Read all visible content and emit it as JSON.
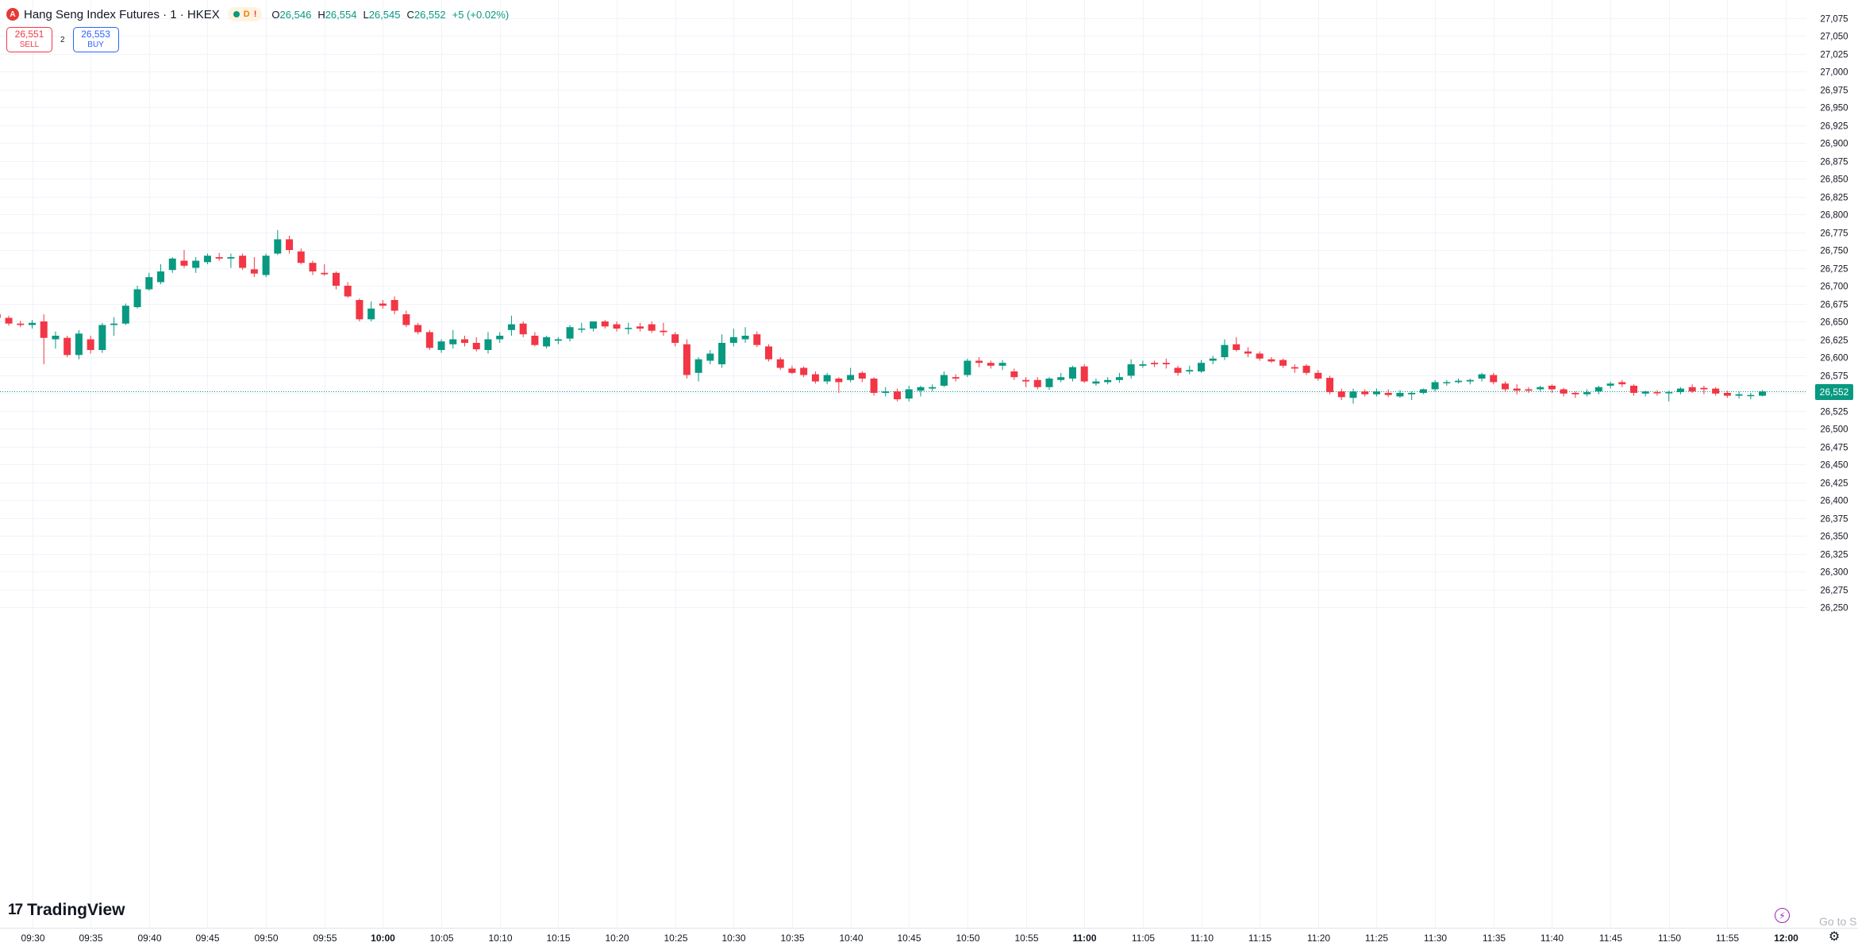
{
  "header": {
    "logo_letter": "A",
    "title": "Hang Seng Index Futures · 1 · HKEX",
    "status_letter": "D",
    "status_warning": "!",
    "open_label": "O",
    "open": "26,546",
    "high_label": "H",
    "high": "26,554",
    "low_label": "L",
    "low": "26,545",
    "close_label": "C",
    "close": "26,552",
    "change": "+5 (+0.02%)"
  },
  "trade": {
    "sell_price": "26,551",
    "sell_label": "SELL",
    "spread": "2",
    "buy_price": "26,553",
    "buy_label": "BUY"
  },
  "price_scale": {
    "current_price_label": "26,552"
  },
  "footer": {
    "brand": "TradingView",
    "goto_text": "Go to S"
  },
  "colors": {
    "up": "#089981",
    "down": "#f23645",
    "grid": "#f0f3fa",
    "text": "#131722"
  },
  "chart_data": {
    "type": "candlestick",
    "title": "Hang Seng Index Futures · 1 · HKEX",
    "interval": "1 minute",
    "y_ticks": [
      27075,
      27050,
      27025,
      27000,
      26975,
      26950,
      26925,
      26900,
      26875,
      26850,
      26825,
      26800,
      26775,
      26750,
      26725,
      26700,
      26675,
      26650,
      26625,
      26600,
      26575,
      26550,
      26525,
      26500,
      26475,
      26450,
      26425,
      26400,
      26375,
      26350,
      26325,
      26300,
      26275,
      26250
    ],
    "x_tick_labels": [
      "09:30",
      "09:35",
      "09:40",
      "09:45",
      "09:50",
      "09:55",
      "10:00",
      "10:05",
      "10:10",
      "10:15",
      "10:20",
      "10:25",
      "10:30",
      "10:35",
      "10:40",
      "10:45",
      "10:50",
      "10:55",
      "11:00",
      "11:05",
      "11:10",
      "11:15",
      "11:20",
      "11:25",
      "11:30",
      "11:35",
      "11:40",
      "11:45",
      "11:50",
      "11:55",
      "12:00"
    ],
    "bold_x_labels": [
      "10:00",
      "11:00",
      "12:00"
    ],
    "last_price": 26552,
    "grid": true,
    "candles": [
      {
        "t": "09:27",
        "o": 26660,
        "h": 26662,
        "l": 26650,
        "c": 26655
      },
      {
        "t": "09:28",
        "o": 26655,
        "h": 26658,
        "l": 26644,
        "c": 26647
      },
      {
        "t": "09:29",
        "o": 26647,
        "h": 26651,
        "l": 26642,
        "c": 26645
      },
      {
        "t": "09:30",
        "o": 26645,
        "h": 26652,
        "l": 26640,
        "c": 26648
      },
      {
        "t": "09:31",
        "o": 26650,
        "h": 26660,
        "l": 26590,
        "c": 26627
      },
      {
        "t": "09:32",
        "o": 26625,
        "h": 26636,
        "l": 26612,
        "c": 26630
      },
      {
        "t": "09:33",
        "o": 26627,
        "h": 26630,
        "l": 26600,
        "c": 26603
      },
      {
        "t": "09:34",
        "o": 26603,
        "h": 26638,
        "l": 26597,
        "c": 26633
      },
      {
        "t": "09:35",
        "o": 26625,
        "h": 26630,
        "l": 26605,
        "c": 26610
      },
      {
        "t": "09:36",
        "o": 26610,
        "h": 26648,
        "l": 26606,
        "c": 26645
      },
      {
        "t": "09:37",
        "o": 26645,
        "h": 26656,
        "l": 26630,
        "c": 26647
      },
      {
        "t": "09:38",
        "o": 26647,
        "h": 26675,
        "l": 26645,
        "c": 26672
      },
      {
        "t": "09:39",
        "o": 26670,
        "h": 26700,
        "l": 26668,
        "c": 26695
      },
      {
        "t": "09:40",
        "o": 26695,
        "h": 26718,
        "l": 26693,
        "c": 26712
      },
      {
        "t": "09:41",
        "o": 26705,
        "h": 26730,
        "l": 26702,
        "c": 26720
      },
      {
        "t": "09:42",
        "o": 26722,
        "h": 26740,
        "l": 26718,
        "c": 26738
      },
      {
        "t": "09:43",
        "o": 26735,
        "h": 26750,
        "l": 26725,
        "c": 26728
      },
      {
        "t": "09:44",
        "o": 26725,
        "h": 26740,
        "l": 26718,
        "c": 26735
      },
      {
        "t": "09:45",
        "o": 26733,
        "h": 26745,
        "l": 26730,
        "c": 26742
      },
      {
        "t": "09:46",
        "o": 26740,
        "h": 26746,
        "l": 26735,
        "c": 26738
      },
      {
        "t": "09:47",
        "o": 26738,
        "h": 26745,
        "l": 26725,
        "c": 26740
      },
      {
        "t": "09:48",
        "o": 26742,
        "h": 26745,
        "l": 26722,
        "c": 26725
      },
      {
        "t": "09:49",
        "o": 26723,
        "h": 26740,
        "l": 26712,
        "c": 26717
      },
      {
        "t": "09:50",
        "o": 26715,
        "h": 26745,
        "l": 26712,
        "c": 26742
      },
      {
        "t": "09:51",
        "o": 26745,
        "h": 26778,
        "l": 26743,
        "c": 26765
      },
      {
        "t": "09:52",
        "o": 26765,
        "h": 26770,
        "l": 26745,
        "c": 26750
      },
      {
        "t": "09:53",
        "o": 26748,
        "h": 26752,
        "l": 26730,
        "c": 26732
      },
      {
        "t": "09:54",
        "o": 26732,
        "h": 26735,
        "l": 26715,
        "c": 26720
      },
      {
        "t": "09:55",
        "o": 26718,
        "h": 26730,
        "l": 26714,
        "c": 26716
      },
      {
        "t": "09:56",
        "o": 26718,
        "h": 26720,
        "l": 26695,
        "c": 26700
      },
      {
        "t": "09:57",
        "o": 26700,
        "h": 26705,
        "l": 26683,
        "c": 26685
      },
      {
        "t": "09:58",
        "o": 26680,
        "h": 26682,
        "l": 26650,
        "c": 26653
      },
      {
        "t": "09:59",
        "o": 26653,
        "h": 26678,
        "l": 26650,
        "c": 26668
      },
      {
        "t": "10:00",
        "o": 26675,
        "h": 26680,
        "l": 26668,
        "c": 26672
      },
      {
        "t": "10:01",
        "o": 26680,
        "h": 26685,
        "l": 26660,
        "c": 26665
      },
      {
        "t": "10:02",
        "o": 26660,
        "h": 26665,
        "l": 26642,
        "c": 26645
      },
      {
        "t": "10:03",
        "o": 26645,
        "h": 26648,
        "l": 26632,
        "c": 26635
      },
      {
        "t": "10:04",
        "o": 26635,
        "h": 26638,
        "l": 26610,
        "c": 26613
      },
      {
        "t": "10:05",
        "o": 26610,
        "h": 26625,
        "l": 26606,
        "c": 26622
      },
      {
        "t": "10:06",
        "o": 26618,
        "h": 26638,
        "l": 26612,
        "c": 26625
      },
      {
        "t": "10:07",
        "o": 26625,
        "h": 26630,
        "l": 26615,
        "c": 26620
      },
      {
        "t": "10:08",
        "o": 26620,
        "h": 26628,
        "l": 26608,
        "c": 26611
      },
      {
        "t": "10:09",
        "o": 26610,
        "h": 26635,
        "l": 26605,
        "c": 26625
      },
      {
        "t": "10:10",
        "o": 26625,
        "h": 26635,
        "l": 26620,
        "c": 26630
      },
      {
        "t": "10:11",
        "o": 26638,
        "h": 26658,
        "l": 26630,
        "c": 26646
      },
      {
        "t": "10:12",
        "o": 26647,
        "h": 26650,
        "l": 26628,
        "c": 26632
      },
      {
        "t": "10:13",
        "o": 26630,
        "h": 26635,
        "l": 26615,
        "c": 26617
      },
      {
        "t": "10:14",
        "o": 26615,
        "h": 26630,
        "l": 26612,
        "c": 26628
      },
      {
        "t": "10:15",
        "o": 26623,
        "h": 26628,
        "l": 26618,
        "c": 26625
      },
      {
        "t": "10:16",
        "o": 26626,
        "h": 26645,
        "l": 26622,
        "c": 26642
      },
      {
        "t": "10:17",
        "o": 26640,
        "h": 26648,
        "l": 26634,
        "c": 26640
      },
      {
        "t": "10:18",
        "o": 26640,
        "h": 26650,
        "l": 26636,
        "c": 26650
      },
      {
        "t": "10:19",
        "o": 26650,
        "h": 26652,
        "l": 26640,
        "c": 26643
      },
      {
        "t": "10:20",
        "o": 26646,
        "h": 26650,
        "l": 26636,
        "c": 26640
      },
      {
        "t": "10:21",
        "o": 26640,
        "h": 26648,
        "l": 26632,
        "c": 26641
      },
      {
        "t": "10:22",
        "o": 26643,
        "h": 26648,
        "l": 26636,
        "c": 26640
      },
      {
        "t": "10:23",
        "o": 26646,
        "h": 26650,
        "l": 26634,
        "c": 26637
      },
      {
        "t": "10:24",
        "o": 26637,
        "h": 26648,
        "l": 26630,
        "c": 26635
      },
      {
        "t": "10:25",
        "o": 26632,
        "h": 26635,
        "l": 26615,
        "c": 26620
      },
      {
        "t": "10:26",
        "o": 26618,
        "h": 26625,
        "l": 26570,
        "c": 26575
      },
      {
        "t": "10:27",
        "o": 26578,
        "h": 26600,
        "l": 26566,
        "c": 26597
      },
      {
        "t": "10:28",
        "o": 26595,
        "h": 26610,
        "l": 26590,
        "c": 26605
      },
      {
        "t": "10:29",
        "o": 26590,
        "h": 26632,
        "l": 26585,
        "c": 26620
      },
      {
        "t": "10:30",
        "o": 26620,
        "h": 26640,
        "l": 26615,
        "c": 26628
      },
      {
        "t": "10:31",
        "o": 26625,
        "h": 26642,
        "l": 26620,
        "c": 26630
      },
      {
        "t": "10:32",
        "o": 26632,
        "h": 26636,
        "l": 26614,
        "c": 26617
      },
      {
        "t": "10:33",
        "o": 26615,
        "h": 26618,
        "l": 26594,
        "c": 26597
      },
      {
        "t": "10:34",
        "o": 26597,
        "h": 26600,
        "l": 26582,
        "c": 26585
      },
      {
        "t": "10:35",
        "o": 26584,
        "h": 26588,
        "l": 26576,
        "c": 26578
      },
      {
        "t": "10:36",
        "o": 26585,
        "h": 26587,
        "l": 26572,
        "c": 26575
      },
      {
        "t": "10:37",
        "o": 26576,
        "h": 26580,
        "l": 26563,
        "c": 26566
      },
      {
        "t": "10:38",
        "o": 26566,
        "h": 26578,
        "l": 26562,
        "c": 26575
      },
      {
        "t": "10:39",
        "o": 26570,
        "h": 26572,
        "l": 26550,
        "c": 26565
      },
      {
        "t": "10:40",
        "o": 26568,
        "h": 26585,
        "l": 26565,
        "c": 26575
      },
      {
        "t": "10:41",
        "o": 26578,
        "h": 26580,
        "l": 26565,
        "c": 26570
      },
      {
        "t": "10:42",
        "o": 26570,
        "h": 26572,
        "l": 26546,
        "c": 26550
      },
      {
        "t": "10:43",
        "o": 26550,
        "h": 26558,
        "l": 26545,
        "c": 26552
      },
      {
        "t": "10:44",
        "o": 26552,
        "h": 26556,
        "l": 26538,
        "c": 26541
      },
      {
        "t": "10:45",
        "o": 26542,
        "h": 26560,
        "l": 26538,
        "c": 26555
      },
      {
        "t": "10:46",
        "o": 26553,
        "h": 26560,
        "l": 26545,
        "c": 26558
      },
      {
        "t": "10:47",
        "o": 26556,
        "h": 26562,
        "l": 26552,
        "c": 26558
      },
      {
        "t": "10:48",
        "o": 26560,
        "h": 26580,
        "l": 26558,
        "c": 26575
      },
      {
        "t": "10:49",
        "o": 26572,
        "h": 26576,
        "l": 26566,
        "c": 26570
      },
      {
        "t": "10:50",
        "o": 26575,
        "h": 26598,
        "l": 26572,
        "c": 26595
      },
      {
        "t": "10:51",
        "o": 26595,
        "h": 26600,
        "l": 26586,
        "c": 26592
      },
      {
        "t": "10:52",
        "o": 26592,
        "h": 26595,
        "l": 26584,
        "c": 26588
      },
      {
        "t": "10:53",
        "o": 26588,
        "h": 26596,
        "l": 26582,
        "c": 26592
      },
      {
        "t": "10:54",
        "o": 26580,
        "h": 26584,
        "l": 26568,
        "c": 26572
      },
      {
        "t": "10:55",
        "o": 26568,
        "h": 26572,
        "l": 26558,
        "c": 26566
      },
      {
        "t": "10:56",
        "o": 26568,
        "h": 26572,
        "l": 26555,
        "c": 26558
      },
      {
        "t": "10:57",
        "o": 26558,
        "h": 26572,
        "l": 26554,
        "c": 26570
      },
      {
        "t": "10:58",
        "o": 26568,
        "h": 26578,
        "l": 26565,
        "c": 26572
      },
      {
        "t": "10:59",
        "o": 26570,
        "h": 26588,
        "l": 26566,
        "c": 26586
      },
      {
        "t": "11:00",
        "o": 26587,
        "h": 26590,
        "l": 26564,
        "c": 26566
      },
      {
        "t": "11:01",
        "o": 26563,
        "h": 26570,
        "l": 26560,
        "c": 26566
      },
      {
        "t": "11:02",
        "o": 26565,
        "h": 26572,
        "l": 26562,
        "c": 26568
      },
      {
        "t": "11:03",
        "o": 26568,
        "h": 26578,
        "l": 26564,
        "c": 26572
      },
      {
        "t": "11:04",
        "o": 26574,
        "h": 26597,
        "l": 26570,
        "c": 26590
      },
      {
        "t": "11:05",
        "o": 26588,
        "h": 26595,
        "l": 26585,
        "c": 26590
      },
      {
        "t": "11:06",
        "o": 26592,
        "h": 26595,
        "l": 26586,
        "c": 26590
      },
      {
        "t": "11:07",
        "o": 26592,
        "h": 26598,
        "l": 26584,
        "c": 26590
      },
      {
        "t": "11:08",
        "o": 26585,
        "h": 26588,
        "l": 26574,
        "c": 26578
      },
      {
        "t": "11:09",
        "o": 26580,
        "h": 26588,
        "l": 26576,
        "c": 26582
      },
      {
        "t": "11:10",
        "o": 26580,
        "h": 26596,
        "l": 26578,
        "c": 26592
      },
      {
        "t": "11:11",
        "o": 26595,
        "h": 26602,
        "l": 26590,
        "c": 26598
      },
      {
        "t": "11:12",
        "o": 26600,
        "h": 26625,
        "l": 26596,
        "c": 26617
      },
      {
        "t": "11:13",
        "o": 26618,
        "h": 26628,
        "l": 26608,
        "c": 26610
      },
      {
        "t": "11:14",
        "o": 26608,
        "h": 26614,
        "l": 26600,
        "c": 26605
      },
      {
        "t": "11:15",
        "o": 26605,
        "h": 26608,
        "l": 26595,
        "c": 26598
      },
      {
        "t": "11:16",
        "o": 26597,
        "h": 26600,
        "l": 26592,
        "c": 26594
      },
      {
        "t": "11:17",
        "o": 26596,
        "h": 26598,
        "l": 26585,
        "c": 26588
      },
      {
        "t": "11:18",
        "o": 26586,
        "h": 26590,
        "l": 26578,
        "c": 26584
      },
      {
        "t": "11:19",
        "o": 26588,
        "h": 26590,
        "l": 26575,
        "c": 26578
      },
      {
        "t": "11:20",
        "o": 26578,
        "h": 26582,
        "l": 26567,
        "c": 26570
      },
      {
        "t": "11:21",
        "o": 26571,
        "h": 26574,
        "l": 26548,
        "c": 26551
      },
      {
        "t": "11:22",
        "o": 26552,
        "h": 26556,
        "l": 26540,
        "c": 26544
      },
      {
        "t": "11:23",
        "o": 26543,
        "h": 26556,
        "l": 26535,
        "c": 26552
      },
      {
        "t": "11:24",
        "o": 26552,
        "h": 26555,
        "l": 26545,
        "c": 26548
      },
      {
        "t": "11:25",
        "o": 26548,
        "h": 26556,
        "l": 26545,
        "c": 26552
      },
      {
        "t": "11:26",
        "o": 26550,
        "h": 26555,
        "l": 26544,
        "c": 26547
      },
      {
        "t": "11:27",
        "o": 26545,
        "h": 26554,
        "l": 26543,
        "c": 26550
      },
      {
        "t": "11:28",
        "o": 26548,
        "h": 26552,
        "l": 26540,
        "c": 26550
      },
      {
        "t": "11:29",
        "o": 26550,
        "h": 26556,
        "l": 26548,
        "c": 26555
      },
      {
        "t": "11:30",
        "o": 26555,
        "h": 26568,
        "l": 26552,
        "c": 26565
      },
      {
        "t": "11:31",
        "o": 26564,
        "h": 26568,
        "l": 26560,
        "c": 26565
      },
      {
        "t": "11:32",
        "o": 26565,
        "h": 26570,
        "l": 26563,
        "c": 26567
      },
      {
        "t": "11:33",
        "o": 26566,
        "h": 26570,
        "l": 26562,
        "c": 26568
      },
      {
        "t": "11:34",
        "o": 26570,
        "h": 26578,
        "l": 26566,
        "c": 26576
      },
      {
        "t": "11:35",
        "o": 26575,
        "h": 26578,
        "l": 26562,
        "c": 26565
      },
      {
        "t": "11:36",
        "o": 26563,
        "h": 26566,
        "l": 26552,
        "c": 26555
      },
      {
        "t": "11:37",
        "o": 26556,
        "h": 26562,
        "l": 26548,
        "c": 26553
      },
      {
        "t": "11:38",
        "o": 26555,
        "h": 26558,
        "l": 26550,
        "c": 26553
      },
      {
        "t": "11:39",
        "o": 26555,
        "h": 26560,
        "l": 26552,
        "c": 26558
      },
      {
        "t": "11:40",
        "o": 26560,
        "h": 26562,
        "l": 26550,
        "c": 26555
      },
      {
        "t": "11:41",
        "o": 26555,
        "h": 26557,
        "l": 26545,
        "c": 26549
      },
      {
        "t": "11:42",
        "o": 26550,
        "h": 26552,
        "l": 26543,
        "c": 26548
      },
      {
        "t": "11:43",
        "o": 26548,
        "h": 26555,
        "l": 26545,
        "c": 26551
      },
      {
        "t": "11:44",
        "o": 26552,
        "h": 26560,
        "l": 26548,
        "c": 26558
      },
      {
        "t": "11:45",
        "o": 26560,
        "h": 26566,
        "l": 26556,
        "c": 26563
      },
      {
        "t": "11:46",
        "o": 26565,
        "h": 26568,
        "l": 26558,
        "c": 26562
      },
      {
        "t": "11:47",
        "o": 26560,
        "h": 26562,
        "l": 26546,
        "c": 26550
      },
      {
        "t": "11:48",
        "o": 26549,
        "h": 26553,
        "l": 26545,
        "c": 26552
      },
      {
        "t": "11:49",
        "o": 26551,
        "h": 26554,
        "l": 26546,
        "c": 26550
      },
      {
        "t": "11:50",
        "o": 26550,
        "h": 26553,
        "l": 26538,
        "c": 26551
      },
      {
        "t": "11:51",
        "o": 26551,
        "h": 26558,
        "l": 26548,
        "c": 26556
      },
      {
        "t": "11:52",
        "o": 26558,
        "h": 26562,
        "l": 26550,
        "c": 26552
      },
      {
        "t": "11:53",
        "o": 26557,
        "h": 26560,
        "l": 26548,
        "c": 26555
      },
      {
        "t": "11:54",
        "o": 26556,
        "h": 26558,
        "l": 26546,
        "c": 26549
      },
      {
        "t": "11:55",
        "o": 26550,
        "h": 26553,
        "l": 26543,
        "c": 26546
      },
      {
        "t": "11:56",
        "o": 26546,
        "h": 26552,
        "l": 26542,
        "c": 26548
      },
      {
        "t": "11:57",
        "o": 26546,
        "h": 26550,
        "l": 26541,
        "c": 26547
      },
      {
        "t": "11:58",
        "o": 26546,
        "h": 26554,
        "l": 26545,
        "c": 26552
      }
    ]
  }
}
